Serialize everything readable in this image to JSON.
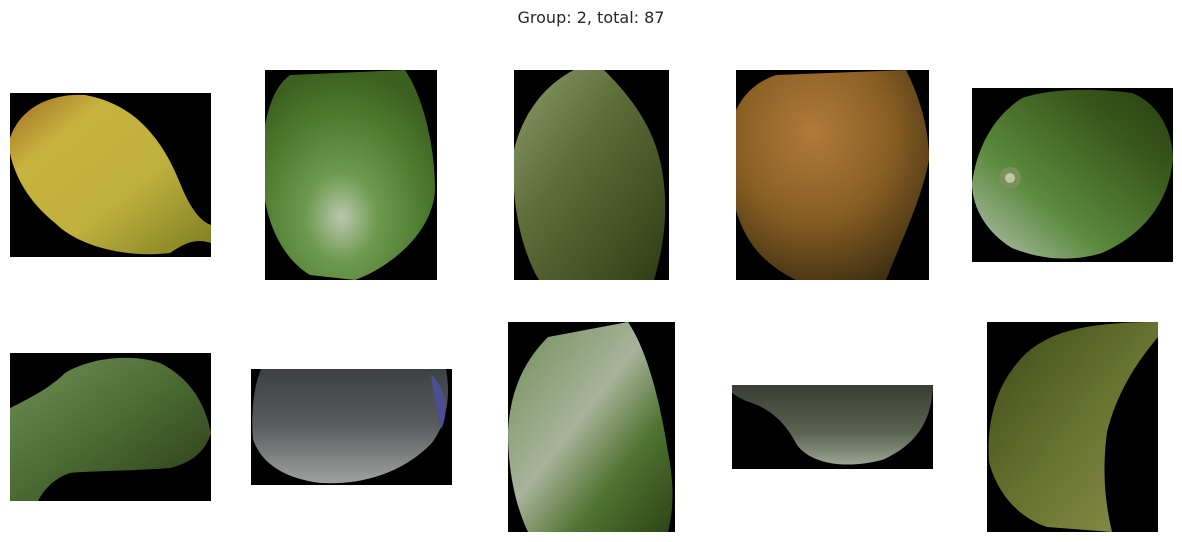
{
  "title": "Group: 2, total: 87",
  "tiles": [
    {
      "label": "yellow-green fruit"
    },
    {
      "label": "green fruit"
    },
    {
      "label": "olive green fruit"
    },
    {
      "label": "orange-brown fruit"
    },
    {
      "label": "green fruit with blossom end"
    },
    {
      "label": "green fruit fragment"
    },
    {
      "label": "grey fruit fragment"
    },
    {
      "label": "green fruit pixelated"
    },
    {
      "label": "grey-green fruit slice"
    },
    {
      "label": "olive green fruit wedge"
    }
  ]
}
